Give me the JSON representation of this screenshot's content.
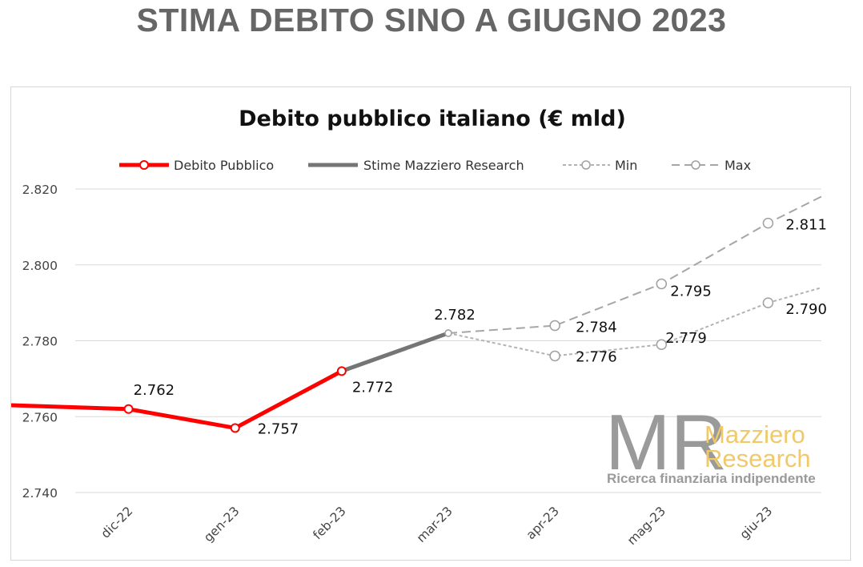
{
  "page": {
    "title": "STIMA DEBITO SINO A GIUGNO 2023"
  },
  "watermark": {
    "letters": "MR",
    "brand_line1": "Mazziero",
    "brand_line2": "Research",
    "tagline": "Ricerca finanziaria indipendente"
  },
  "chart_data": {
    "type": "line",
    "title": "Debito pubblico italiano (€ mld)",
    "xlabel": "",
    "ylabel": "",
    "categories": [
      "dic-22",
      "gen-23",
      "feb-23",
      "mar-23",
      "apr-23",
      "mag-23",
      "giu-23"
    ],
    "ylim": [
      2740,
      2820
    ],
    "yticks": [
      2740,
      2760,
      2780,
      2800,
      2820
    ],
    "ytick_labels": [
      "2.740",
      "2.760",
      "2.780",
      "2.800",
      "2.820"
    ],
    "grid": true,
    "legend_position": "top",
    "series": [
      {
        "name": "Debito Pubblico",
        "color": "#ff0000",
        "style": "solid",
        "marker": "circle-filled-white",
        "x": [
          "dic-22",
          "gen-23",
          "feb-23"
        ],
        "values": [
          2762,
          2757,
          2772
        ],
        "labels": [
          "2.762",
          "2.757",
          "2.772"
        ],
        "lead_in_value": 2763
      },
      {
        "name": "Stime Mazziero Research",
        "color": "#757575",
        "style": "solid",
        "marker": "none",
        "x": [
          "feb-23",
          "mar-23"
        ],
        "values": [
          2772,
          2782
        ],
        "labels": [
          "",
          "2.782"
        ]
      },
      {
        "name": "Min",
        "color": "#b3b3b3",
        "style": "dotted",
        "marker": "circle-open",
        "x": [
          "mar-23",
          "apr-23",
          "mag-23",
          "giu-23"
        ],
        "values": [
          2782,
          2776,
          2779,
          2790
        ],
        "labels": [
          "",
          "2.776",
          "2.779",
          "2.790"
        ],
        "trail_value": 2794
      },
      {
        "name": "Max",
        "color": "#a6a6a6",
        "style": "dashed",
        "marker": "circle-open",
        "x": [
          "mar-23",
          "apr-23",
          "mag-23",
          "giu-23"
        ],
        "values": [
          2782,
          2784,
          2795,
          2811
        ],
        "labels": [
          "",
          "2.784",
          "2.795",
          "2.811"
        ],
        "trail_value": 2818
      }
    ]
  }
}
